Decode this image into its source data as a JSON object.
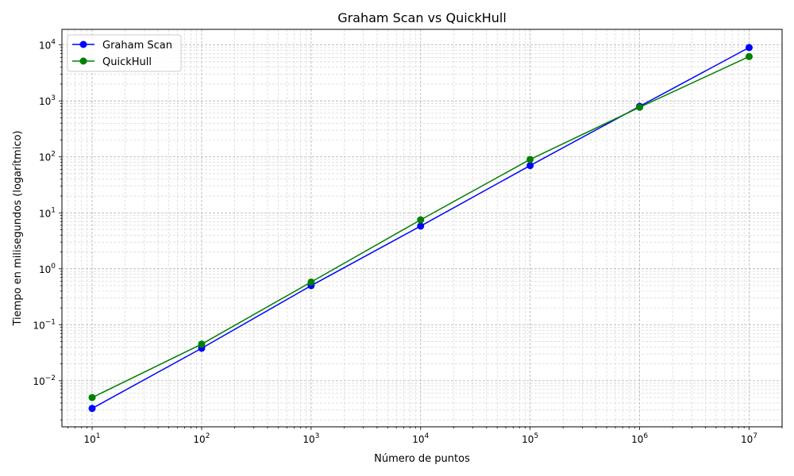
{
  "chart_data": {
    "type": "line",
    "title": "Graham Scan vs QuickHull",
    "xlabel": "Número de puntos",
    "ylabel": "Tiempo en milisegundos (logarítmico)",
    "xscale": "log",
    "yscale": "log",
    "xlim": [
      5.3,
      20000000
    ],
    "ylim": [
      0.0015,
      19000
    ],
    "grid": true,
    "legend_position": "top-left",
    "x": [
      10,
      100,
      1000,
      10000,
      100000,
      1000000,
      10000000
    ],
    "x_ticks": [
      {
        "value": 10,
        "base": "10",
        "exp": "1"
      },
      {
        "value": 100,
        "base": "10",
        "exp": "2"
      },
      {
        "value": 1000,
        "base": "10",
        "exp": "3"
      },
      {
        "value": 10000,
        "base": "10",
        "exp": "4"
      },
      {
        "value": 100000,
        "base": "10",
        "exp": "5"
      },
      {
        "value": 1000000,
        "base": "10",
        "exp": "6"
      },
      {
        "value": 10000000,
        "base": "10",
        "exp": "7"
      }
    ],
    "y_ticks": [
      {
        "value": 0.01,
        "base": "10",
        "exp": "−2"
      },
      {
        "value": 0.1,
        "base": "10",
        "exp": "−1"
      },
      {
        "value": 1,
        "base": "10",
        "exp": "0"
      },
      {
        "value": 10,
        "base": "10",
        "exp": "1"
      },
      {
        "value": 100,
        "base": "10",
        "exp": "2"
      },
      {
        "value": 1000,
        "base": "10",
        "exp": "3"
      },
      {
        "value": 10000,
        "base": "10",
        "exp": "4"
      }
    ],
    "series": [
      {
        "name": "Graham Scan",
        "color": "#0000ff",
        "marker": "circle",
        "values": [
          0.0032,
          0.038,
          0.5,
          5.8,
          70,
          800,
          9000
        ]
      },
      {
        "name": "QuickHull",
        "color": "#008000",
        "marker": "circle",
        "values": [
          0.005,
          0.045,
          0.58,
          7.5,
          90,
          770,
          6200
        ]
      }
    ]
  }
}
